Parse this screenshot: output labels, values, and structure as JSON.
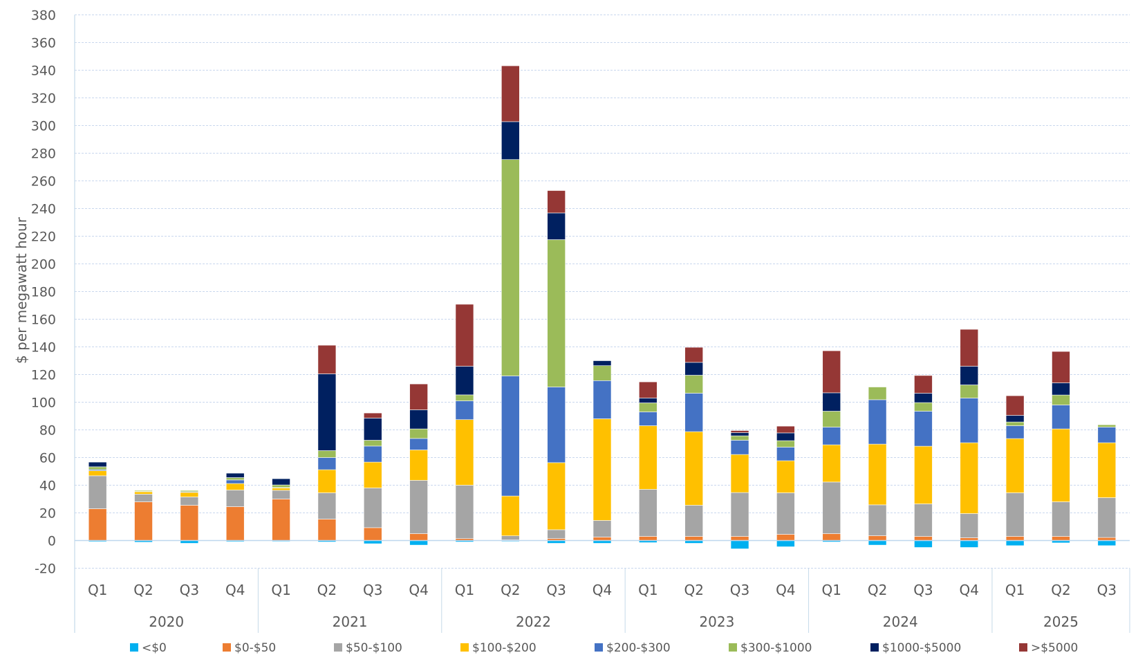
{
  "chart_data": {
    "type": "bar",
    "stacked": true,
    "title": "",
    "ylabel": "$ per megawatt hour",
    "xlabel": "",
    "ylim": [
      -20,
      380
    ],
    "yticks": [
      -20,
      0,
      20,
      40,
      60,
      80,
      100,
      120,
      140,
      160,
      180,
      200,
      220,
      240,
      260,
      280,
      300,
      320,
      340,
      360,
      380
    ],
    "grid": true,
    "legend_position": "bottom",
    "categories": [
      {
        "quarter": "Q1",
        "year": "2020"
      },
      {
        "quarter": "Q2",
        "year": "2020"
      },
      {
        "quarter": "Q3",
        "year": "2020"
      },
      {
        "quarter": "Q4",
        "year": "2020"
      },
      {
        "quarter": "Q1",
        "year": "2021"
      },
      {
        "quarter": "Q2",
        "year": "2021"
      },
      {
        "quarter": "Q3",
        "year": "2021"
      },
      {
        "quarter": "Q4",
        "year": "2021"
      },
      {
        "quarter": "Q1",
        "year": "2022"
      },
      {
        "quarter": "Q2",
        "year": "2022"
      },
      {
        "quarter": "Q3",
        "year": "2022"
      },
      {
        "quarter": "Q4",
        "year": "2022"
      },
      {
        "quarter": "Q1",
        "year": "2023"
      },
      {
        "quarter": "Q2",
        "year": "2023"
      },
      {
        "quarter": "Q3",
        "year": "2023"
      },
      {
        "quarter": "Q4",
        "year": "2023"
      },
      {
        "quarter": "Q1",
        "year": "2024"
      },
      {
        "quarter": "Q2",
        "year": "2024"
      },
      {
        "quarter": "Q3",
        "year": "2024"
      },
      {
        "quarter": "Q4",
        "year": "2024"
      },
      {
        "quarter": "Q1",
        "year": "2025"
      },
      {
        "quarter": "Q2",
        "year": "2025"
      },
      {
        "quarter": "Q3",
        "year": "2025"
      }
    ],
    "years": [
      "2020",
      "2021",
      "2022",
      "2023",
      "2024",
      "2025"
    ],
    "series": [
      {
        "name": "<$0",
        "color": "#00B0F0",
        "values": [
          -0.8,
          -1.2,
          -2,
          -0.8,
          -0.7,
          -1,
          -2.3,
          -3.3,
          -1,
          -0.7,
          -2,
          -2,
          -1.5,
          -2,
          -6,
          -4.5,
          -1,
          -3.3,
          -5,
          -5,
          -3.7,
          -1.7,
          -3.7
        ]
      },
      {
        "name": "$0-$50",
        "color": "#ED7D31",
        "values": [
          23,
          28,
          25.5,
          24.5,
          30,
          15.5,
          9.3,
          5,
          1.4,
          0.5,
          1.4,
          2.5,
          3,
          3,
          3,
          4.5,
          5,
          3.5,
          3,
          2,
          3,
          3,
          2.2
        ]
      },
      {
        "name": "$50-$100",
        "color": "#A5A5A5",
        "values": [
          23.8,
          5.5,
          6,
          12,
          6.3,
          19,
          28.7,
          38.5,
          38.6,
          2.9,
          6.4,
          12,
          34,
          22.5,
          31.7,
          30,
          37.3,
          22.3,
          23.5,
          17.5,
          31.5,
          25,
          28.8
        ]
      },
      {
        "name": "$100-$200",
        "color": "#FFC000",
        "values": [
          3.7,
          1.8,
          3.3,
          4.7,
          1.7,
          16.7,
          18.7,
          22,
          47.4,
          28.8,
          48.5,
          73.5,
          46,
          53.2,
          27.5,
          23.2,
          26.9,
          43.9,
          41.7,
          51.2,
          39.2,
          52.7,
          39.7
        ]
      },
      {
        "name": "$200-$300",
        "color": "#4472C4",
        "values": [
          0.8,
          0.2,
          0.5,
          2.6,
          0.3,
          8.8,
          11.6,
          8.3,
          13.6,
          86.8,
          54.7,
          27.6,
          10,
          27.8,
          10.3,
          9.8,
          12.8,
          32.1,
          25.3,
          32.3,
          9.3,
          17.3,
          11.3
        ]
      },
      {
        "name": "$300-$1000",
        "color": "#9BBB59",
        "values": [
          2,
          0.7,
          0.9,
          1.7,
          1.9,
          5,
          4.2,
          6.9,
          4.3,
          156.4,
          106.5,
          10.8,
          6.5,
          13,
          3.2,
          4.7,
          11.5,
          9.2,
          6.2,
          9.5,
          2.7,
          7.2,
          1.7
        ]
      },
      {
        "name": "$1000-$5000",
        "color": "#002060",
        "values": [
          3.4,
          0,
          0,
          3.2,
          4.5,
          55.5,
          16,
          13.8,
          20.7,
          27.4,
          19.3,
          3.6,
          3.5,
          9.3,
          2.3,
          5.6,
          13.3,
          0,
          6.8,
          13.5,
          4.8,
          8.8,
          0
        ]
      },
      {
        "name": ">$5000",
        "color": "#953735",
        "values": [
          0,
          0,
          0,
          0,
          0,
          20.7,
          3.7,
          18.7,
          44.8,
          40.4,
          16.2,
          0,
          11.7,
          10.9,
          1.5,
          4.9,
          30.4,
          0,
          12.8,
          26.7,
          14.2,
          22.7,
          0
        ]
      }
    ]
  }
}
